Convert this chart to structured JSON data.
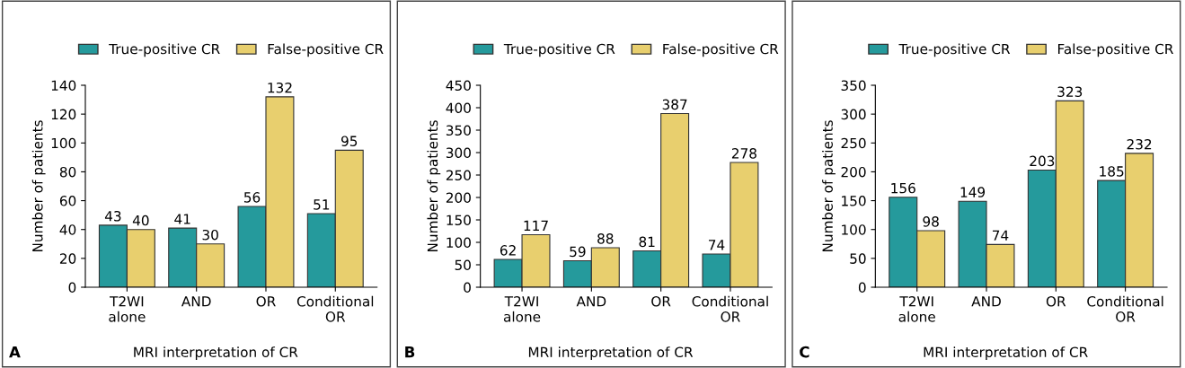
{
  "chart_data": [
    {
      "type": "bar",
      "categories": [
        "T2WI\nalone",
        "AND",
        "OR",
        "Conditional\nOR"
      ],
      "xlabel": "MRI interpretation of CR",
      "ylabel": "Number of patients",
      "ylim": [
        0,
        140
      ],
      "yticks": [
        0,
        20,
        40,
        60,
        80,
        100,
        120,
        140
      ],
      "legend": "top",
      "data_labels": true,
      "annotations": [
        "A"
      ],
      "series": [
        {
          "name": "True-positive CR",
          "color": "#259a9c",
          "values": [
            43,
            41,
            56,
            51
          ]
        },
        {
          "name": "False-positive CR",
          "color": "#e8cf6e",
          "values": [
            40,
            30,
            132,
            95
          ]
        }
      ]
    },
    {
      "type": "bar",
      "categories": [
        "T2WI\nalone",
        "AND",
        "OR",
        "Conditional\nOR"
      ],
      "xlabel": "MRI interpretation of CR",
      "ylabel": "Number of patients",
      "ylim": [
        0,
        450
      ],
      "yticks": [
        0,
        50,
        100,
        150,
        200,
        250,
        300,
        350,
        400,
        450
      ],
      "legend": "top",
      "data_labels": true,
      "annotations": [
        "B"
      ],
      "series": [
        {
          "name": "True-positive CR",
          "color": "#259a9c",
          "values": [
            62,
            59,
            81,
            74
          ]
        },
        {
          "name": "False-positive CR",
          "color": "#e8cf6e",
          "values": [
            117,
            88,
            387,
            278
          ]
        }
      ]
    },
    {
      "type": "bar",
      "categories": [
        "T2WI\nalone",
        "AND",
        "OR",
        "Conditional\nOR"
      ],
      "xlabel": "MRI interpretation of CR",
      "ylabel": "Number of patients",
      "ylim": [
        0,
        350
      ],
      "yticks": [
        0,
        50,
        100,
        150,
        200,
        250,
        300,
        350
      ],
      "legend": "top",
      "data_labels": true,
      "annotations": [
        "C"
      ],
      "series": [
        {
          "name": "True-positive CR",
          "color": "#259a9c",
          "values": [
            156,
            149,
            203,
            185
          ]
        },
        {
          "name": "False-positive CR",
          "color": "#e8cf6e",
          "values": [
            98,
            74,
            323,
            232
          ]
        }
      ]
    }
  ]
}
